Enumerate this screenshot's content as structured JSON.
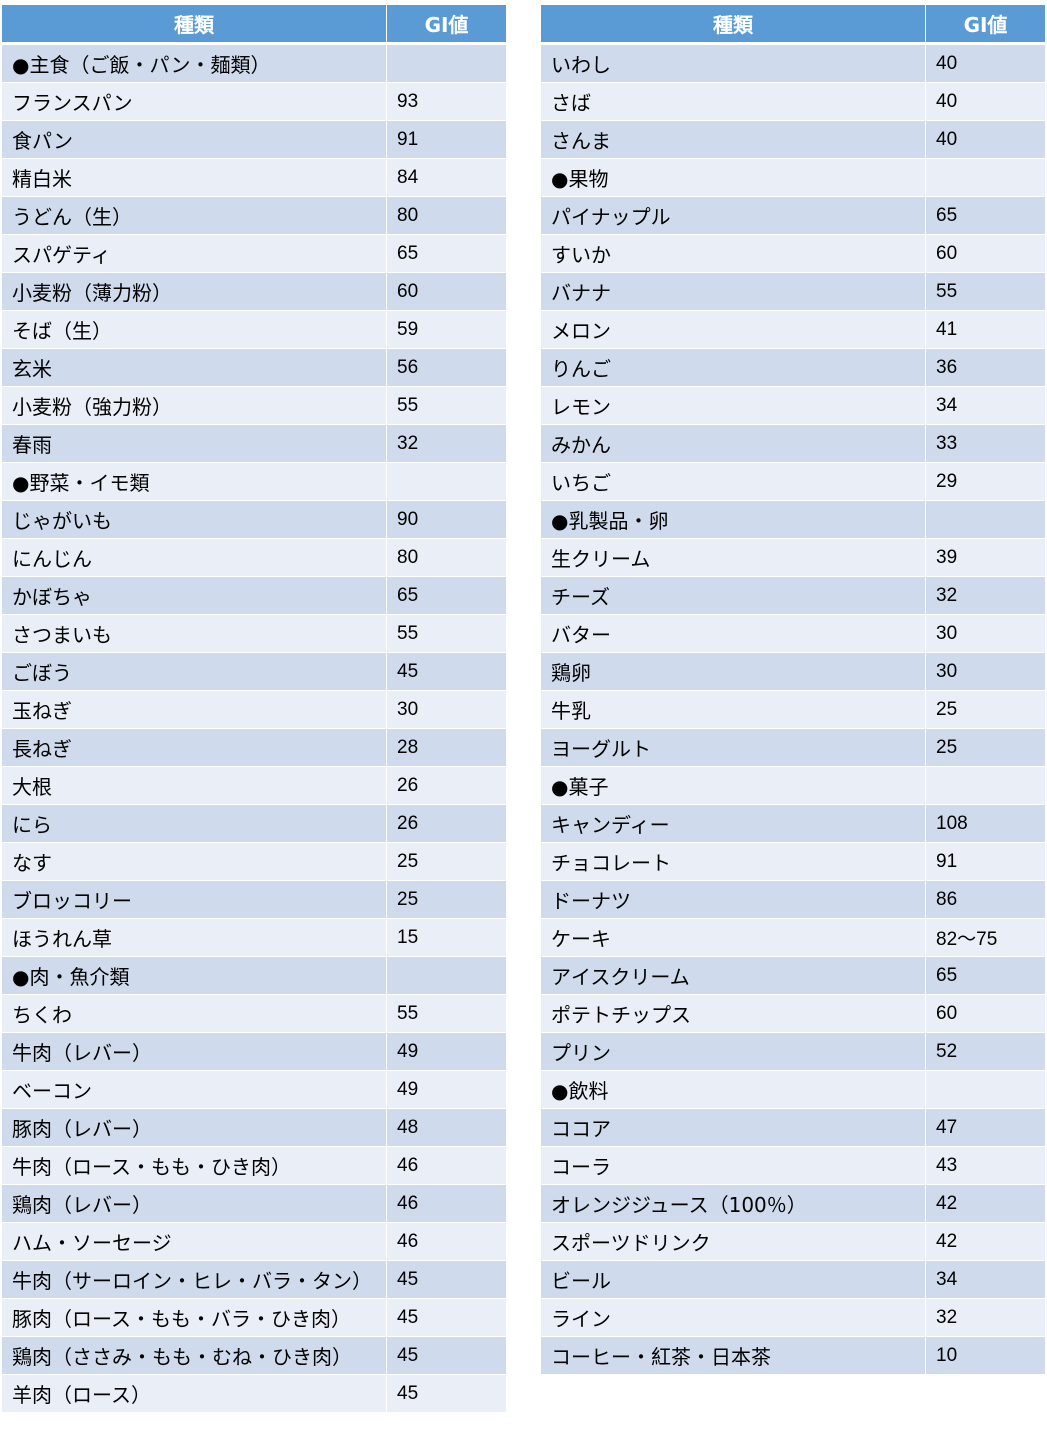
{
  "header": {
    "name": "種類",
    "gi": "GI値"
  },
  "left_rows": [
    {
      "name": "●主食（ご飯・パン・麺類）",
      "gi": ""
    },
    {
      "name": "フランスパン",
      "gi": "93"
    },
    {
      "name": "食パン",
      "gi": "91"
    },
    {
      "name": "精白米",
      "gi": "84"
    },
    {
      "name": "うどん（生）",
      "gi": "80"
    },
    {
      "name": "スパゲティ",
      "gi": "65"
    },
    {
      "name": "小麦粉（薄力粉）",
      "gi": "60"
    },
    {
      "name": "そば（生）",
      "gi": "59"
    },
    {
      "name": "玄米",
      "gi": "56"
    },
    {
      "name": "小麦粉（強力粉）",
      "gi": "55"
    },
    {
      "name": "春雨",
      "gi": "32"
    },
    {
      "name": "●野菜・イモ類",
      "gi": ""
    },
    {
      "name": "じゃがいも",
      "gi": "90"
    },
    {
      "name": "にんじん",
      "gi": "80"
    },
    {
      "name": "かぼちゃ",
      "gi": "65"
    },
    {
      "name": "さつまいも",
      "gi": "55"
    },
    {
      "name": "ごぼう",
      "gi": "45"
    },
    {
      "name": "玉ねぎ",
      "gi": "30"
    },
    {
      "name": "長ねぎ",
      "gi": "28"
    },
    {
      "name": "大根",
      "gi": "26"
    },
    {
      "name": "にら",
      "gi": "26"
    },
    {
      "name": "なす",
      "gi": "25"
    },
    {
      "name": "ブロッコリー",
      "gi": "25"
    },
    {
      "name": "ほうれん草",
      "gi": "15"
    },
    {
      "name": "●肉・魚介類",
      "gi": ""
    },
    {
      "name": "ちくわ",
      "gi": "55"
    },
    {
      "name": "牛肉（レバー）",
      "gi": "49"
    },
    {
      "name": "ベーコン",
      "gi": "49"
    },
    {
      "name": "豚肉（レバー）",
      "gi": "48"
    },
    {
      "name": "牛肉（ロース・もも・ひき肉）",
      "gi": "46"
    },
    {
      "name": "鶏肉（レバー）",
      "gi": "46"
    },
    {
      "name": "ハム・ソーセージ",
      "gi": "46"
    },
    {
      "name": "牛肉（サーロイン・ヒレ・バラ・タン）",
      "gi": "45"
    },
    {
      "name": "豚肉（ロース・もも・バラ・ひき肉）",
      "gi": "45"
    },
    {
      "name": "鶏肉（ささみ・もも・むね・ひき肉）",
      "gi": "45"
    },
    {
      "name": "羊肉（ロース）",
      "gi": "45"
    }
  ],
  "right_rows": [
    {
      "name": "いわし",
      "gi": "40"
    },
    {
      "name": "さば",
      "gi": "40"
    },
    {
      "name": "さんま",
      "gi": "40"
    },
    {
      "name": "●果物",
      "gi": ""
    },
    {
      "name": "パイナップル",
      "gi": "65"
    },
    {
      "name": "すいか",
      "gi": "60"
    },
    {
      "name": "バナナ",
      "gi": "55"
    },
    {
      "name": "メロン",
      "gi": "41"
    },
    {
      "name": "りんご",
      "gi": "36"
    },
    {
      "name": "レモン",
      "gi": "34"
    },
    {
      "name": "みかん",
      "gi": "33"
    },
    {
      "name": "いちご",
      "gi": "29"
    },
    {
      "name": "●乳製品・卵",
      "gi": ""
    },
    {
      "name": "生クリーム",
      "gi": "39"
    },
    {
      "name": "チーズ",
      "gi": "32"
    },
    {
      "name": "バター",
      "gi": "30"
    },
    {
      "name": "鶏卵",
      "gi": "30"
    },
    {
      "name": "牛乳",
      "gi": "25"
    },
    {
      "name": "ヨーグルト",
      "gi": "25"
    },
    {
      "name": "●菓子",
      "gi": ""
    },
    {
      "name": "キャンディー",
      "gi": "108"
    },
    {
      "name": "チョコレート",
      "gi": "91"
    },
    {
      "name": "ドーナツ",
      "gi": "86"
    },
    {
      "name": "ケーキ",
      "gi": "82～75"
    },
    {
      "name": "アイスクリーム",
      "gi": "65"
    },
    {
      "name": "ポテトチップス",
      "gi": "60"
    },
    {
      "name": "プリン",
      "gi": "52"
    },
    {
      "name": "●飲料",
      "gi": ""
    },
    {
      "name": "ココア",
      "gi": "47"
    },
    {
      "name": "コーラ",
      "gi": "43"
    },
    {
      "name": "オレンジジュース（100％）",
      "gi": "42"
    },
    {
      "name": "スポーツドリンク",
      "gi": "42"
    },
    {
      "name": "ビール",
      "gi": "34"
    },
    {
      "name": "ライン",
      "gi": "32"
    },
    {
      "name": "コーヒー・紅茶・日本茶",
      "gi": "10"
    }
  ],
  "colors": {
    "header_bg": "#5b9bd5",
    "row_odd_bg": "#cfdaec",
    "row_even_bg": "#e9eef7"
  }
}
